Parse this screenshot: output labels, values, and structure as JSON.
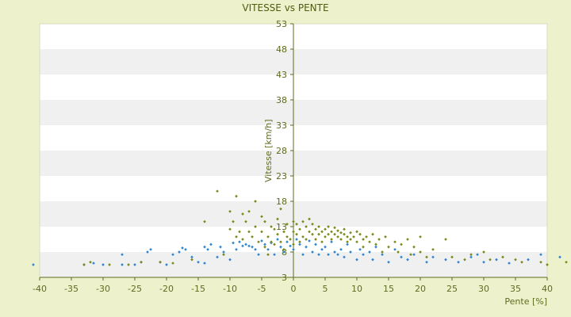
{
  "chart_data": {
    "type": "scatter",
    "title": "VITESSE vs PENTE",
    "xlabel": "Pente [%]",
    "ylabel": "Vitesse [km/h]",
    "xlim": [
      -40,
      40
    ],
    "ylim": [
      3,
      53
    ],
    "x_ticks": [
      -40,
      -35,
      -30,
      -25,
      -20,
      -15,
      -10,
      -5,
      0,
      5,
      10,
      15,
      20,
      25,
      30,
      35,
      40
    ],
    "y_ticks": [
      3,
      8,
      13,
      18,
      23,
      28,
      33,
      38,
      43,
      48,
      53
    ],
    "grid": "horizontal alternating bands",
    "legend": "none",
    "colors": {
      "background": "#eef2cc",
      "plot_band_light": "#ffffff",
      "plot_band_dark": "#f0f0f0",
      "axis_line": "#5d6b1f",
      "blue_points": "#2e86d6",
      "olive_points": "#7a8a1a"
    },
    "series": [
      {
        "color": "#2e86d6",
        "points": [
          [
            -41,
            5.5
          ],
          [
            -33,
            5.5
          ],
          [
            -31.5,
            5.8
          ],
          [
            -30,
            5.5
          ],
          [
            -27,
            7.5
          ],
          [
            -27,
            5.5
          ],
          [
            -25,
            5.5
          ],
          [
            -24,
            6.0
          ],
          [
            -23,
            8.0
          ],
          [
            -22.5,
            8.5
          ],
          [
            -21,
            6.0
          ],
          [
            -20,
            5.5
          ],
          [
            -19,
            7.5
          ],
          [
            -18,
            8.0
          ],
          [
            -17.5,
            8.8
          ],
          [
            -17,
            8.5
          ],
          [
            -16,
            7.0
          ],
          [
            -15,
            6.0
          ],
          [
            -14,
            5.8
          ],
          [
            -14,
            9.0
          ],
          [
            -13.5,
            8.5
          ],
          [
            -13,
            9.5
          ],
          [
            -12,
            7.0
          ],
          [
            -11.5,
            9.0
          ],
          [
            -11,
            8.0
          ],
          [
            -10,
            6.5
          ],
          [
            -9.5,
            9.8
          ],
          [
            -9,
            8.5
          ],
          [
            -8.5,
            10.0
          ],
          [
            -8,
            9.2
          ],
          [
            -7.5,
            9.5
          ],
          [
            -7,
            9.2
          ],
          [
            -6.5,
            9.0
          ],
          [
            -6,
            8.5
          ],
          [
            -5.5,
            7.5
          ],
          [
            -5,
            10.2
          ],
          [
            -4.5,
            9.5
          ],
          [
            -4,
            8.5
          ],
          [
            -3.5,
            9.8
          ],
          [
            -3,
            7.5
          ],
          [
            -2.5,
            10.5
          ],
          [
            -2,
            9.0
          ],
          [
            -1.5,
            8.0
          ],
          [
            -1,
            10.0
          ],
          [
            -0.5,
            9.2
          ],
          [
            0,
            8.5
          ],
          [
            0.5,
            10.5
          ],
          [
            1,
            9.5
          ],
          [
            1.5,
            7.5
          ],
          [
            2,
            9.0
          ],
          [
            2.5,
            10.2
          ],
          [
            3,
            8.0
          ],
          [
            3.5,
            9.5
          ],
          [
            4,
            7.5
          ],
          [
            4.5,
            8.5
          ],
          [
            5,
            9.0
          ],
          [
            5.5,
            7.5
          ],
          [
            6,
            10.0
          ],
          [
            6.5,
            8.0
          ],
          [
            7,
            7.5
          ],
          [
            7.5,
            8.5
          ],
          [
            8,
            7.0
          ],
          [
            8.5,
            9.5
          ],
          [
            9,
            8.0
          ],
          [
            10,
            6.5
          ],
          [
            10.5,
            8.5
          ],
          [
            11,
            7.5
          ],
          [
            12,
            8.0
          ],
          [
            12.5,
            6.5
          ],
          [
            13,
            9.0
          ],
          [
            14,
            7.5
          ],
          [
            15,
            6.0
          ],
          [
            16,
            8.5
          ],
          [
            17,
            7.0
          ],
          [
            18,
            6.5
          ],
          [
            19,
            7.5
          ],
          [
            21,
            6.0
          ],
          [
            22,
            7.0
          ],
          [
            24,
            6.5
          ],
          [
            26,
            6.0
          ],
          [
            28,
            7.0
          ],
          [
            29,
            7.5
          ],
          [
            30,
            6.0
          ],
          [
            32,
            6.5
          ],
          [
            34,
            5.8
          ],
          [
            37,
            6.5
          ],
          [
            39,
            7.5
          ],
          [
            42,
            7.0
          ]
        ]
      },
      {
        "color": "#7a8a1a",
        "points": [
          [
            -33,
            5.5
          ],
          [
            -32,
            6.0
          ],
          [
            -29,
            5.5
          ],
          [
            -26,
            5.5
          ],
          [
            -24,
            6.0
          ],
          [
            -21,
            6.0
          ],
          [
            -19,
            5.8
          ],
          [
            -16,
            6.5
          ],
          [
            -14,
            14.0
          ],
          [
            -12,
            20.0
          ],
          [
            -11,
            7.5
          ],
          [
            -10,
            16.0
          ],
          [
            -10,
            12.5
          ],
          [
            -9.5,
            14.0
          ],
          [
            -9,
            19.0
          ],
          [
            -9,
            11.0
          ],
          [
            -8.5,
            12.0
          ],
          [
            -8,
            15.5
          ],
          [
            -8,
            10.5
          ],
          [
            -7.5,
            14.0
          ],
          [
            -7,
            16.0
          ],
          [
            -7,
            12.0
          ],
          [
            -6.5,
            11.0
          ],
          [
            -6,
            18.0
          ],
          [
            -6,
            13.0
          ],
          [
            -5.5,
            10.0
          ],
          [
            -5,
            15.0
          ],
          [
            -5,
            12.0
          ],
          [
            -4.5,
            14.0
          ],
          [
            -4.5,
            9.0
          ],
          [
            -4,
            11.0
          ],
          [
            -4,
            7.5
          ],
          [
            -3.5,
            13.0
          ],
          [
            -3.5,
            10.0
          ],
          [
            -3,
            12.5
          ],
          [
            -3,
            9.5
          ],
          [
            -2.5,
            14.5
          ],
          [
            -2.5,
            11.5
          ],
          [
            -2,
            16.5
          ],
          [
            -2,
            10.0
          ],
          [
            -1.5,
            12.0
          ],
          [
            -1.5,
            8.5
          ],
          [
            -1,
            13.5
          ],
          [
            -1,
            11.0
          ],
          [
            -0.5,
            10.5
          ],
          [
            0,
            12.0
          ],
          [
            0,
            14.0
          ],
          [
            0,
            9.5
          ],
          [
            0.5,
            11.5
          ],
          [
            0.5,
            13.5
          ],
          [
            1,
            12.5
          ],
          [
            1,
            10.0
          ],
          [
            1.5,
            11.0
          ],
          [
            1.5,
            14.0
          ],
          [
            2,
            13.0
          ],
          [
            2,
            10.5
          ],
          [
            2.5,
            12.0
          ],
          [
            2.5,
            14.5
          ],
          [
            3,
            11.5
          ],
          [
            3,
            13.5
          ],
          [
            3.5,
            12.5
          ],
          [
            3.5,
            10.5
          ],
          [
            4,
            11.5
          ],
          [
            4,
            13.0
          ],
          [
            4.5,
            12.0
          ],
          [
            4.5,
            10.0
          ],
          [
            5,
            12.5
          ],
          [
            5,
            11.0
          ],
          [
            5.5,
            11.5
          ],
          [
            5.5,
            13.0
          ],
          [
            6,
            12.0
          ],
          [
            6,
            10.5
          ],
          [
            6.5,
            11.5
          ],
          [
            6.5,
            12.8
          ],
          [
            7,
            11.0
          ],
          [
            7,
            12.2
          ],
          [
            7.5,
            11.8
          ],
          [
            7.5,
            10.5
          ],
          [
            8,
            11.5
          ],
          [
            8,
            12.5
          ],
          [
            8.5,
            11.0
          ],
          [
            8.5,
            10.0
          ],
          [
            9,
            11.8
          ],
          [
            9,
            10.5
          ],
          [
            9.5,
            11.0
          ],
          [
            10,
            12.0
          ],
          [
            10,
            10.0
          ],
          [
            10.5,
            11.5
          ],
          [
            11,
            10.5
          ],
          [
            11,
            9.0
          ],
          [
            11.5,
            11.0
          ],
          [
            12,
            10.0
          ],
          [
            12.5,
            11.5
          ],
          [
            13,
            9.5
          ],
          [
            13.5,
            10.5
          ],
          [
            14,
            8.0
          ],
          [
            14.5,
            11.0
          ],
          [
            15,
            9.0
          ],
          [
            16,
            10.0
          ],
          [
            16.5,
            8.0
          ],
          [
            17,
            9.5
          ],
          [
            18,
            10.5
          ],
          [
            18.5,
            7.5
          ],
          [
            19,
            9.0
          ],
          [
            20,
            11.0
          ],
          [
            20,
            8.0
          ],
          [
            21,
            7.0
          ],
          [
            22,
            8.5
          ],
          [
            24,
            10.5
          ],
          [
            25,
            7.0
          ],
          [
            27,
            6.5
          ],
          [
            28,
            7.5
          ],
          [
            30,
            8.0
          ],
          [
            31,
            6.5
          ],
          [
            33,
            7.0
          ],
          [
            35,
            6.5
          ],
          [
            36,
            6.0
          ],
          [
            39,
            6.0
          ],
          [
            40,
            5.5
          ],
          [
            43,
            6.0
          ]
        ]
      }
    ]
  }
}
